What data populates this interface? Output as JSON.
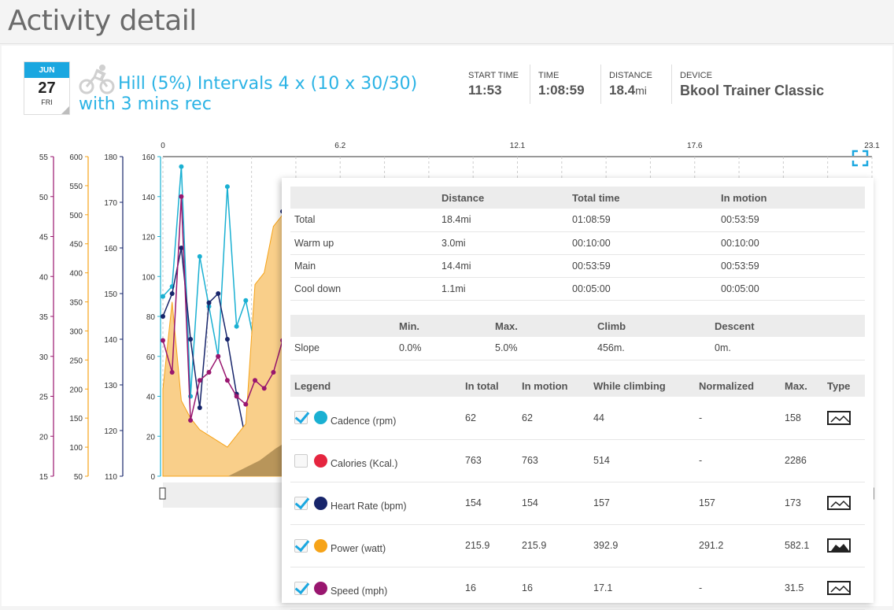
{
  "page": {
    "title": "Activity detail"
  },
  "calendar": {
    "month": "JUN",
    "day": "27",
    "weekday": "FRI"
  },
  "activity": {
    "title": "Hill (5%) Intervals 4 x (10 x 30/30) with 3 mins rec",
    "icon": "cycling-icon"
  },
  "stats": [
    {
      "label": "START TIME",
      "value": "11:53",
      "unit": ""
    },
    {
      "label": "TIME",
      "value": "1:08:59",
      "unit": ""
    },
    {
      "label": "DISTANCE",
      "value": "18.4",
      "unit": "mi"
    },
    {
      "label": "DEVICE",
      "value": "Bkool Trainer Classic",
      "unit": ""
    }
  ],
  "colors": {
    "accent": "#1aa7e0",
    "cadence": "#1ab0d2",
    "calories": "#e5253f",
    "heart_rate": "#17256b",
    "power": "#f6a318",
    "speed": "#99166f"
  },
  "chart_data": {
    "type": "line",
    "x_ticks": [
      "0",
      "6.2",
      "12.1",
      "17.6",
      "23.1"
    ],
    "axes": [
      {
        "name": "speed",
        "color": "#99166f",
        "ticks": [
          "55",
          "50",
          "45",
          "40",
          "35",
          "30",
          "25",
          "20",
          "15"
        ],
        "range": [
          15,
          55
        ]
      },
      {
        "name": "power",
        "color": "#f6a318",
        "ticks": [
          "600",
          "550",
          "500",
          "450",
          "400",
          "350",
          "300",
          "250",
          "200",
          "150",
          "100",
          "50"
        ],
        "range": [
          50,
          600
        ]
      },
      {
        "name": "heart_rate",
        "color": "#17256b",
        "ticks": [
          "180",
          "170",
          "160",
          "150",
          "140",
          "130",
          "120",
          "110"
        ],
        "range": [
          110,
          180
        ]
      },
      {
        "name": "cadence",
        "color": "#1ab0d2",
        "ticks": [
          "160",
          "140",
          "120",
          "100",
          "80",
          "60",
          "40",
          "20",
          "0"
        ],
        "range": [
          0,
          160
        ]
      }
    ],
    "series": [
      {
        "name": "Cadence (rpm)",
        "x": [
          0.0,
          0.3,
          0.6,
          0.9,
          1.2,
          1.5,
          1.8,
          2.1,
          2.4,
          2.7,
          3.0,
          3.3,
          3.6,
          3.9,
          4.2
        ],
        "y": [
          90,
          95,
          155,
          40,
          110,
          85,
          60,
          145,
          75,
          88,
          65,
          80,
          60,
          85,
          70
        ]
      },
      {
        "name": "Heart Rate (bpm)",
        "x": [
          0.0,
          0.3,
          0.6,
          0.9,
          1.2,
          1.5,
          1.8,
          2.1,
          2.4,
          2.7,
          3.0,
          3.3,
          3.6,
          3.9,
          4.2
        ],
        "y": [
          145,
          150,
          160,
          140,
          125,
          148,
          150,
          140,
          128,
          118,
          125,
          130,
          148,
          168,
          160
        ]
      },
      {
        "name": "Power (watt)",
        "x": [
          0.0,
          0.3,
          0.6,
          0.9,
          1.2,
          1.5,
          1.8,
          2.1,
          2.4,
          2.7,
          3.0,
          3.3,
          3.6,
          3.9,
          4.2
        ],
        "y": [
          200,
          350,
          180,
          150,
          130,
          120,
          110,
          100,
          120,
          140,
          380,
          400,
          480,
          500,
          390
        ]
      },
      {
        "name": "Speed (mph)",
        "x": [
          0.0,
          0.3,
          0.6,
          0.9,
          1.2,
          1.5,
          1.8,
          2.1,
          2.4,
          2.7,
          3.0,
          3.3,
          3.6,
          3.9,
          4.2
        ],
        "y": [
          32,
          28,
          50,
          22,
          27,
          28,
          30,
          27,
          25,
          24,
          27,
          26,
          28,
          32,
          30
        ]
      }
    ],
    "grid": true
  },
  "summary": {
    "headers": [
      "",
      "Distance",
      "Total time",
      "In motion"
    ],
    "rows": [
      [
        "Total",
        "18.4mi",
        "01:08:59",
        "00:53:59"
      ],
      [
        "Warm up",
        "3.0mi",
        "00:10:00",
        "00:10:00"
      ],
      [
        "Main",
        "14.4mi",
        "00:53:59",
        "00:53:59"
      ],
      [
        "Cool down",
        "1.1mi",
        "00:05:00",
        "00:05:00"
      ]
    ]
  },
  "slope": {
    "headers": [
      "",
      "Min.",
      "Max.",
      "Climb",
      "Descent"
    ],
    "rows": [
      [
        "Slope",
        "0.0%",
        "5.0%",
        "456m.",
        "0m."
      ]
    ]
  },
  "legend": {
    "headers": [
      "Legend",
      "In total",
      "In motion",
      "While climbing",
      "Normalized",
      "Max.",
      "Type"
    ],
    "rows": [
      {
        "checked": true,
        "color": "#1ab0d2",
        "label": "Cadence (rpm)",
        "in_total": "62",
        "in_motion": "62",
        "climbing": "44",
        "normalized": "-",
        "max": "158",
        "type": "line"
      },
      {
        "checked": false,
        "color": "#e5253f",
        "label": "Calories (Kcal.)",
        "in_total": "763",
        "in_motion": "763",
        "climbing": "514",
        "normalized": "-",
        "max": "2286",
        "type": ""
      },
      {
        "checked": true,
        "color": "#17256b",
        "label": "Heart Rate (bpm)",
        "in_total": "154",
        "in_motion": "154",
        "climbing": "157",
        "normalized": "157",
        "max": "173",
        "type": "line"
      },
      {
        "checked": true,
        "color": "#f6a318",
        "label": "Power (watt)",
        "in_total": "215.9",
        "in_motion": "215.9",
        "climbing": "392.9",
        "normalized": "291.2",
        "max": "582.1",
        "type": "area"
      },
      {
        "checked": true,
        "color": "#99166f",
        "label": "Speed (mph)",
        "in_total": "16",
        "in_motion": "16",
        "climbing": "17.1",
        "normalized": "-",
        "max": "31.5",
        "type": "line"
      }
    ]
  }
}
